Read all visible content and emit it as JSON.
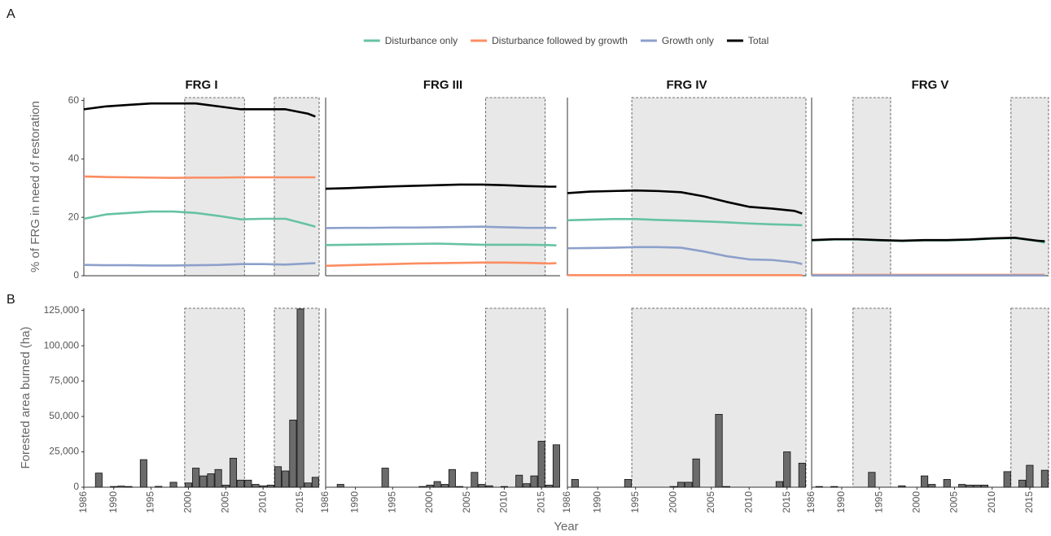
{
  "chart_data": [
    {
      "type": "line",
      "panel": "A",
      "title": "FRG I",
      "y_label": "% of FRG in need of restoration",
      "x": [
        1986,
        1989,
        1992,
        1995,
        1998,
        2001,
        2004,
        2007,
        2010,
        2013,
        2016,
        2017
      ],
      "series": [
        {
          "name": "Disturbance only",
          "color": "#66c2a5",
          "values": [
            19.5,
            21,
            21.5,
            22,
            22,
            21.5,
            20.5,
            19.3,
            19.5,
            19.5,
            17.5,
            16.8
          ]
        },
        {
          "name": "Disturbance followed by growth",
          "color": "#fc8d62",
          "values": [
            34,
            33.8,
            33.7,
            33.6,
            33.5,
            33.6,
            33.6,
            33.7,
            33.7,
            33.7,
            33.7,
            33.7
          ]
        },
        {
          "name": "Growth only",
          "color": "#8da0cb",
          "values": [
            3.7,
            3.6,
            3.6,
            3.5,
            3.5,
            3.6,
            3.7,
            4,
            4,
            3.8,
            4.2,
            4.3
          ]
        },
        {
          "name": "Total",
          "color": "#000000",
          "values": [
            57,
            58,
            58.5,
            59,
            59,
            59,
            58,
            57,
            57,
            57,
            55.5,
            54.5
          ]
        }
      ],
      "xlim": [
        1986,
        2017.5
      ],
      "ylim": [
        0,
        61
      ],
      "yticks": [
        0,
        20,
        40,
        60
      ],
      "shaded": [
        [
          1999.5,
          2007.5
        ],
        [
          2011.5,
          2017.5
        ]
      ]
    },
    {
      "type": "line",
      "title": "FRG III",
      "x": [
        1986,
        1989,
        1992,
        1995,
        1998,
        2001,
        2004,
        2007,
        2010,
        2013,
        2016,
        2017
      ],
      "series": [
        {
          "color": "#66c2a5",
          "values": [
            10.5,
            10.6,
            10.7,
            10.8,
            10.9,
            11,
            10.8,
            10.6,
            10.6,
            10.6,
            10.5,
            10.4
          ]
        },
        {
          "color": "#fc8d62",
          "values": [
            3.4,
            3.6,
            3.8,
            4,
            4.2,
            4.3,
            4.4,
            4.5,
            4.5,
            4.4,
            4.2,
            4.3
          ]
        },
        {
          "color": "#8da0cb",
          "values": [
            16.3,
            16.4,
            16.4,
            16.5,
            16.5,
            16.6,
            16.7,
            16.8,
            16.6,
            16.4,
            16.4,
            16.4
          ]
        },
        {
          "color": "#000000",
          "values": [
            29.8,
            30,
            30.3,
            30.6,
            30.8,
            31,
            31.2,
            31.2,
            31,
            30.7,
            30.5,
            30.5
          ]
        }
      ],
      "xlim": [
        1986,
        2017.5
      ],
      "ylim": [
        0,
        61
      ],
      "shaded": [
        [
          2007.5,
          2015.5
        ]
      ]
    },
    {
      "type": "line",
      "title": "FRG IV",
      "x": [
        1986,
        1989,
        1992,
        1995,
        1998,
        2001,
        2004,
        2007,
        2010,
        2013,
        2016,
        2017
      ],
      "series": [
        {
          "color": "#66c2a5",
          "values": [
            19,
            19.2,
            19.4,
            19.4,
            19.1,
            18.9,
            18.6,
            18.3,
            17.9,
            17.6,
            17.4,
            17.3
          ]
        },
        {
          "color": "#fc8d62",
          "values": [
            0.2,
            0.2,
            0.2,
            0.2,
            0.2,
            0.2,
            0.2,
            0.2,
            0.2,
            0.2,
            0.2,
            0.2
          ]
        },
        {
          "color": "#8da0cb",
          "values": [
            9.4,
            9.5,
            9.6,
            9.8,
            9.8,
            9.6,
            8.3,
            6.7,
            5.6,
            5.4,
            4.6,
            4
          ]
        },
        {
          "color": "#000000",
          "values": [
            28.3,
            28.8,
            29,
            29.2,
            29,
            28.6,
            27.2,
            25.3,
            23.6,
            23,
            22.2,
            21.3
          ]
        }
      ],
      "xlim": [
        1986,
        2017.5
      ],
      "ylim": [
        0,
        61
      ],
      "shaded": [
        [
          1994.5,
          2017.5
        ]
      ]
    },
    {
      "type": "line",
      "title": "FRG V",
      "x": [
        1986,
        1989,
        1992,
        1995,
        1998,
        2001,
        2004,
        2007,
        2010,
        2013,
        2016,
        2017
      ],
      "series": [
        {
          "color": "#66c2a5",
          "values": [
            12.1,
            12.4,
            12.4,
            12.1,
            11.9,
            12.1,
            12.1,
            12.3,
            12.7,
            12.9,
            11.9,
            11.3
          ]
        },
        {
          "color": "#fc8d62",
          "values": [
            0.3,
            0.3,
            0.3,
            0.3,
            0.3,
            0.3,
            0.3,
            0.3,
            0.3,
            0.3,
            0.3,
            0.3
          ]
        },
        {
          "color": "#8da0cb",
          "values": [
            0.1,
            0.1,
            0.1,
            0.1,
            0.1,
            0.1,
            0.1,
            0.1,
            0.1,
            0.1,
            0.1,
            0.1
          ]
        },
        {
          "color": "#000000",
          "values": [
            12.2,
            12.5,
            12.5,
            12.2,
            12,
            12.2,
            12.2,
            12.4,
            12.8,
            13,
            12,
            11.8
          ]
        }
      ],
      "xlim": [
        1986,
        2017.5
      ],
      "ylim": [
        0,
        61
      ],
      "shaded": [
        [
          1991.5,
          1996.5
        ],
        [
          2012.5,
          2017.5
        ]
      ]
    },
    {
      "type": "bar",
      "panel": "B",
      "y_label": "Forested area burned (ha)",
      "x_label": "Year",
      "color": "#6b6b6b",
      "x": [
        1986,
        1987,
        1988,
        1989,
        1990,
        1991,
        1992,
        1993,
        1994,
        1995,
        1996,
        1997,
        1998,
        1999,
        2000,
        2001,
        2002,
        2003,
        2004,
        2005,
        2006,
        2007,
        2008,
        2009,
        2010,
        2011,
        2012,
        2013,
        2014,
        2015,
        2016,
        2017
      ],
      "values": [
        0,
        0,
        10000,
        0,
        500,
        800,
        500,
        0,
        19500,
        0,
        600,
        0,
        3500,
        0,
        3000,
        13500,
        8000,
        9500,
        12500,
        1500,
        20500,
        5000,
        5000,
        2000,
        1000,
        1500,
        14500,
        11500,
        47500,
        126000,
        3000,
        7000
      ],
      "xlim": [
        1986,
        2017.5
      ],
      "ylim": [
        0,
        126500
      ],
      "yticks": [
        0,
        {
          "value": 25000,
          "label": "25,000"
        },
        {
          "value": 50000,
          "label": "50,000"
        },
        {
          "value": 75000,
          "label": "75,000"
        },
        {
          "value": 100000,
          "label": "100,000"
        },
        {
          "value": 125000,
          "label": "125,000"
        }
      ],
      "xticks": [
        1986,
        1990,
        1995,
        2000,
        2005,
        2010,
        2015
      ],
      "shaded": [
        [
          1999.5,
          2007.5
        ],
        [
          2011.5,
          2017.5
        ]
      ]
    },
    {
      "type": "bar",
      "color": "#6b6b6b",
      "x": [
        1986,
        1987,
        1988,
        1989,
        1990,
        1991,
        1992,
        1993,
        1994,
        1995,
        1996,
        1997,
        1998,
        1999,
        2000,
        2001,
        2002,
        2003,
        2004,
        2005,
        2006,
        2007,
        2008,
        2009,
        2010,
        2011,
        2012,
        2013,
        2014,
        2015,
        2016,
        2017
      ],
      "values": [
        0,
        0,
        2000,
        0,
        0,
        0,
        0,
        0,
        13500,
        0,
        0,
        0,
        0,
        500,
        1500,
        4000,
        2000,
        12500,
        500,
        0,
        10500,
        2000,
        1000,
        0,
        500,
        0,
        8500,
        2500,
        8000,
        32500,
        1500,
        30000
      ],
      "xlim": [
        1986,
        2017.5
      ],
      "ylim": [
        0,
        126500
      ],
      "xticks": [
        1986,
        1990,
        1995,
        2000,
        2005,
        2010,
        2015
      ],
      "shaded": [
        [
          2007.5,
          2015.5
        ]
      ]
    },
    {
      "type": "bar",
      "color": "#6b6b6b",
      "x": [
        1986,
        1987,
        1988,
        1989,
        1990,
        1991,
        1992,
        1993,
        1994,
        1995,
        1996,
        1997,
        1998,
        1999,
        2000,
        2001,
        2002,
        2003,
        2004,
        2005,
        2006,
        2007,
        2008,
        2009,
        2010,
        2011,
        2012,
        2013,
        2014,
        2015,
        2016,
        2017
      ],
      "values": [
        0,
        5500,
        0,
        0,
        0,
        0,
        0,
        0,
        5500,
        0,
        0,
        0,
        0,
        0,
        500,
        3500,
        3500,
        20000,
        0,
        0,
        51500,
        500,
        0,
        0,
        0,
        0,
        0,
        0,
        4000,
        25000,
        0,
        17000
      ],
      "xlim": [
        1986,
        2017.5
      ],
      "ylim": [
        0,
        126500
      ],
      "xticks": [
        1986,
        1990,
        1995,
        2000,
        2005,
        2010,
        2015
      ],
      "shaded": [
        [
          1994.5,
          2017.5
        ]
      ]
    },
    {
      "type": "bar",
      "color": "#6b6b6b",
      "x": [
        1986,
        1987,
        1988,
        1989,
        1990,
        1991,
        1992,
        1993,
        1994,
        1995,
        1996,
        1997,
        1998,
        1999,
        2000,
        2001,
        2002,
        2003,
        2004,
        2005,
        2006,
        2007,
        2008,
        2009,
        2010,
        2011,
        2012,
        2013,
        2014,
        2015,
        2016,
        2017
      ],
      "values": [
        0,
        500,
        0,
        500,
        0,
        0,
        0,
        0,
        10500,
        0,
        0,
        0,
        1000,
        0,
        0,
        8000,
        2000,
        0,
        5500,
        0,
        2000,
        1500,
        1500,
        1500,
        0,
        0,
        11000,
        0,
        5000,
        15500,
        0,
        12000
      ],
      "xlim": [
        1986,
        2017.5
      ],
      "ylim": [
        0,
        126500
      ],
      "xticks": [
        1986,
        1990,
        1995,
        2000,
        2005,
        2010,
        2015
      ],
      "shaded": [
        [
          1991.5,
          1996.5
        ],
        [
          2012.5,
          2017.5
        ]
      ]
    }
  ]
}
